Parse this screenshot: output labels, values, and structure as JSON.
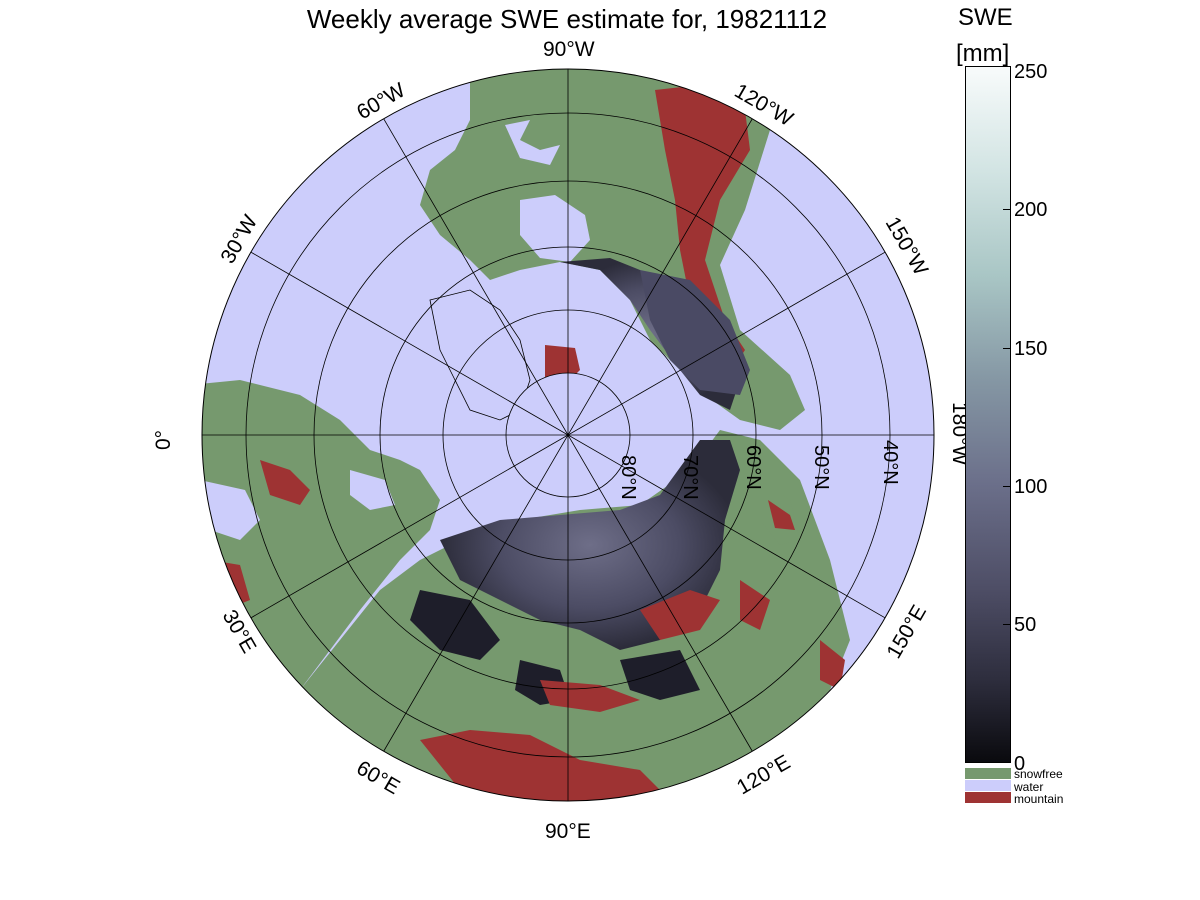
{
  "title": "Weekly average SWE estimate for, 19821112",
  "colorbar": {
    "title": "SWE",
    "unit": "[mm]",
    "ticks": [
      "250",
      "200",
      "150",
      "100",
      "50",
      "0"
    ],
    "range": [
      0,
      250
    ],
    "legend": [
      {
        "label": "snowfree",
        "color": "#76996e"
      },
      {
        "label": "water",
        "color": "#cccdfb"
      },
      {
        "label": "mountain",
        "color": "#9e3333"
      }
    ]
  },
  "map": {
    "projection": "polar stereographic, north pole",
    "colors": {
      "water": "#cccdfb",
      "snowfree": "#76996e",
      "mountain": "#9e3333",
      "snow": "#4a4a64"
    },
    "meridian_labels": [
      "90°W",
      "120°W",
      "150°W",
      "180°W",
      "150°E",
      "120°E",
      "90°E",
      "60°E",
      "30°E",
      "0°",
      "30°W",
      "60°W"
    ],
    "parallel_labels": [
      "80°N",
      "70°N",
      "60°N",
      "50°N",
      "40°N"
    ]
  }
}
